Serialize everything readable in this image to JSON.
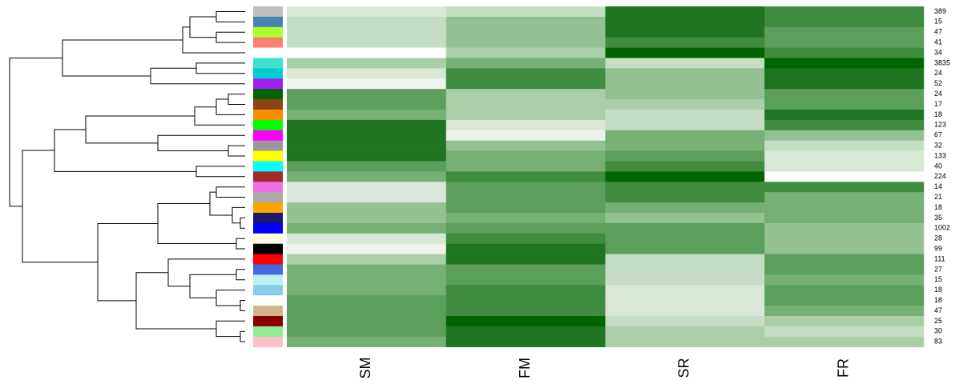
{
  "chart_data": {
    "type": "heatmap",
    "columns": [
      "SM",
      "FM",
      "SR",
      "FR"
    ],
    "rows": [
      "389",
      "15",
      "47",
      "41",
      "34",
      "3835",
      "24",
      "52",
      "24",
      "17",
      "18",
      "123",
      "67",
      "32",
      "133",
      "40",
      "224",
      "14",
      "21",
      "18",
      "35",
      "1002",
      "28",
      "99",
      "111",
      "27",
      "15",
      "18",
      "18",
      "47",
      "25",
      "30",
      "83"
    ],
    "side_colors": [
      "#bebebe",
      "#4682b4",
      "#adff2f",
      "#fa8072",
      "#ffffff",
      "#40e0d0",
      "#00ced1",
      "#a020f0",
      "#006400",
      "#8b4513",
      "#ff8c00",
      "#00ff00",
      "#ff00ff",
      "#999999",
      "#ffff00",
      "#00ffff",
      "#a52a2a",
      "#ee6ee6",
      "#aaaaaa",
      "#ffa500",
      "#191970",
      "#0000ff",
      "#ffffe0",
      "#000000",
      "#ff0000",
      "#4169e1",
      "#bfeff2",
      "#87ceeb",
      "#ffffff",
      "#d2b48c",
      "#8b0000",
      "#90ee90",
      "#ffc0cb"
    ],
    "cell_colors": [
      [
        "#d9e8d6",
        "#c5dec3",
        "#1e7420",
        "#3f8b3f"
      ],
      [
        "#c5dec3",
        "#94c192",
        "#1e7420",
        "#3f8b3f"
      ],
      [
        "#c5dec3",
        "#94c192",
        "#1e7420",
        "#5c9f5c"
      ],
      [
        "#c5dec3",
        "#94c192",
        "#3f8b3f",
        "#5c9f5c"
      ],
      [
        "#ffffff",
        "#aacfa8",
        "#006400",
        "#3f8b3f"
      ],
      [
        "#aacfa8",
        "#76b074",
        "#c5dec3",
        "#006400"
      ],
      [
        "#d9e8d6",
        "#3f8b3f",
        "#94c192",
        "#1e7420"
      ],
      [
        "#eef4ec",
        "#3f8b3f",
        "#94c192",
        "#1e7420"
      ],
      [
        "#5c9f5c",
        "#aacfa8",
        "#94c192",
        "#5c9f5c"
      ],
      [
        "#5c9f5c",
        "#aacfa8",
        "#aacfa8",
        "#5c9f5c"
      ],
      [
        "#76b074",
        "#aacfa8",
        "#c5dec3",
        "#1e7420"
      ],
      [
        "#1e7420",
        "#d9e8d6",
        "#c5dec3",
        "#3f8b3f"
      ],
      [
        "#1e7420",
        "#eef4ec",
        "#76b074",
        "#94c192"
      ],
      [
        "#1e7420",
        "#94c192",
        "#76b074",
        "#c5dec3"
      ],
      [
        "#1e7420",
        "#76b074",
        "#5c9f5c",
        "#d9e8d6"
      ],
      [
        "#5c9f5c",
        "#76b074",
        "#3f8b3f",
        "#d9e8d6"
      ],
      [
        "#76b074",
        "#3f8b3f",
        "#006400",
        "#ffffff"
      ],
      [
        "#d9e8d6",
        "#5c9f5c",
        "#3f8b3f",
        "#3f8b3f"
      ],
      [
        "#d9e8d6",
        "#5c9f5c",
        "#3f8b3f",
        "#76b074"
      ],
      [
        "#94c192",
        "#5c9f5c",
        "#76b074",
        "#76b074"
      ],
      [
        "#94c192",
        "#76b074",
        "#94c192",
        "#76b074"
      ],
      [
        "#76b074",
        "#5c9f5c",
        "#5c9f5c",
        "#94c192"
      ],
      [
        "#d9e8d6",
        "#3f8b3f",
        "#5c9f5c",
        "#94c192"
      ],
      [
        "#eef4ec",
        "#1e7420",
        "#5c9f5c",
        "#94c192"
      ],
      [
        "#aacfa8",
        "#1e7420",
        "#c5dec3",
        "#5c9f5c"
      ],
      [
        "#76b074",
        "#5c9f5c",
        "#c5dec3",
        "#5c9f5c"
      ],
      [
        "#76b074",
        "#5c9f5c",
        "#c5dec3",
        "#76b074"
      ],
      [
        "#76b074",
        "#3f8b3f",
        "#d9e8d6",
        "#5c9f5c"
      ],
      [
        "#5c9f5c",
        "#3f8b3f",
        "#d9e8d6",
        "#5c9f5c"
      ],
      [
        "#5c9f5c",
        "#3f8b3f",
        "#d9e8d6",
        "#76b074"
      ],
      [
        "#5c9f5c",
        "#006400",
        "#c5dec3",
        "#aacfa8"
      ],
      [
        "#5c9f5c",
        "#1e7420",
        "#aacfa8",
        "#c5dec3"
      ],
      [
        "#76b074",
        "#1e7420",
        "#aacfa8",
        "#aacfa8"
      ]
    ]
  }
}
